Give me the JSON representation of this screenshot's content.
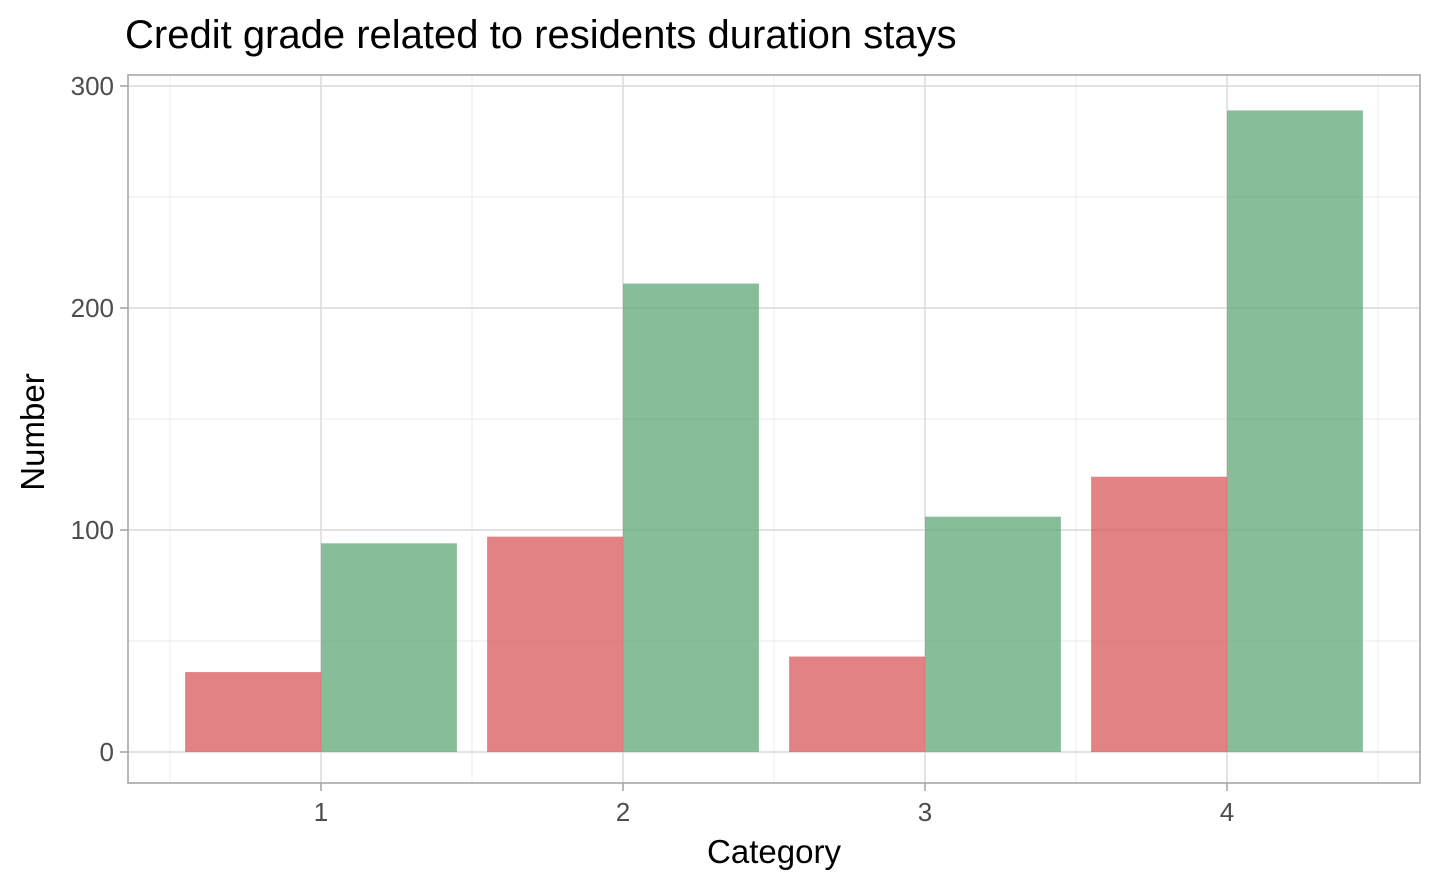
{
  "chart_data": {
    "type": "bar",
    "title": "Credit grade related to residents duration stays",
    "xlabel": "Category",
    "ylabel": "Number",
    "categories": [
      "1",
      "2",
      "3",
      "4"
    ],
    "series": [
      {
        "color": "#d9585c",
        "values": [
          36,
          97,
          43,
          124
        ]
      },
      {
        "color": "#5fa777",
        "values": [
          94,
          211,
          106,
          289
        ]
      }
    ],
    "ylim": [
      0,
      300
    ],
    "yticks": [
      0,
      100,
      200,
      300
    ],
    "grid": true,
    "legend": "none"
  }
}
